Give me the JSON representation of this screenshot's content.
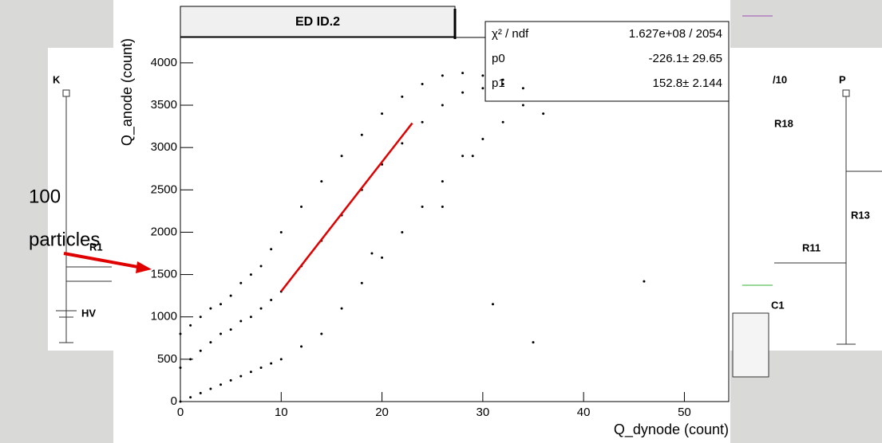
{
  "chart_data": {
    "type": "scatter",
    "title": "ED ID.2",
    "x_label": "Q_dynode (count)",
    "y_label": "Q_anode (count)",
    "xlim": [
      0,
      54.4
    ],
    "ylim": [
      0,
      4300
    ],
    "xticks": [
      0,
      10,
      20,
      30,
      40,
      50
    ],
    "yticks": [
      0,
      500,
      1000,
      1500,
      2000,
      2500,
      3000,
      3500,
      4000
    ],
    "color": "#000000",
    "x": [
      0,
      0,
      0,
      1,
      1,
      1,
      2,
      2,
      2,
      3,
      3,
      3,
      4,
      4,
      4,
      5,
      5,
      5,
      6,
      6,
      6,
      7,
      7,
      7,
      8,
      8,
      8,
      9,
      9,
      9,
      10,
      10,
      10,
      12,
      12,
      12,
      14,
      14,
      14,
      16,
      16,
      16,
      18,
      18,
      18,
      20,
      20,
      20,
      22,
      22,
      22,
      24,
      24,
      24,
      26,
      26,
      26,
      28,
      28,
      28,
      30,
      30,
      30,
      32,
      32,
      32,
      34,
      34,
      36,
      19,
      26,
      31,
      35,
      46,
      29
    ],
    "y": [
      0,
      400,
      800,
      50,
      500,
      900,
      100,
      600,
      1000,
      150,
      700,
      1100,
      200,
      800,
      1150,
      250,
      850,
      1250,
      300,
      950,
      1400,
      350,
      1000,
      1500,
      400,
      1100,
      1600,
      450,
      1200,
      1800,
      500,
      1300,
      2000,
      650,
      1600,
      2300,
      800,
      1900,
      2600,
      1100,
      2200,
      2900,
      1400,
      2500,
      3150,
      1700,
      2800,
      3400,
      2000,
      3050,
      3600,
      2300,
      3300,
      3750,
      2600,
      3500,
      3850,
      2900,
      3650,
      3880,
      3100,
      3700,
      3850,
      3300,
      3750,
      3800,
      3500,
      3700,
      3400,
      1750,
      2300,
      1150,
      700,
      1420,
      2900
    ],
    "fit": {
      "color": "#e00000",
      "x": [
        10,
        23
      ],
      "y": [
        1302,
        3288
      ]
    },
    "stats": [
      [
        "χ² / ndf",
        "1.627e+08 / 2054"
      ],
      [
        "p0",
        "-226.1± 29.65"
      ],
      [
        "p1",
        "152.8± 2.144"
      ]
    ],
    "annotation": [
      "100",
      "particles"
    ]
  },
  "background_labels": {
    "left": [
      "K",
      "R1",
      "HV"
    ],
    "right": [
      "/10",
      "R18",
      "P",
      "R13",
      "R11",
      "C1"
    ]
  }
}
